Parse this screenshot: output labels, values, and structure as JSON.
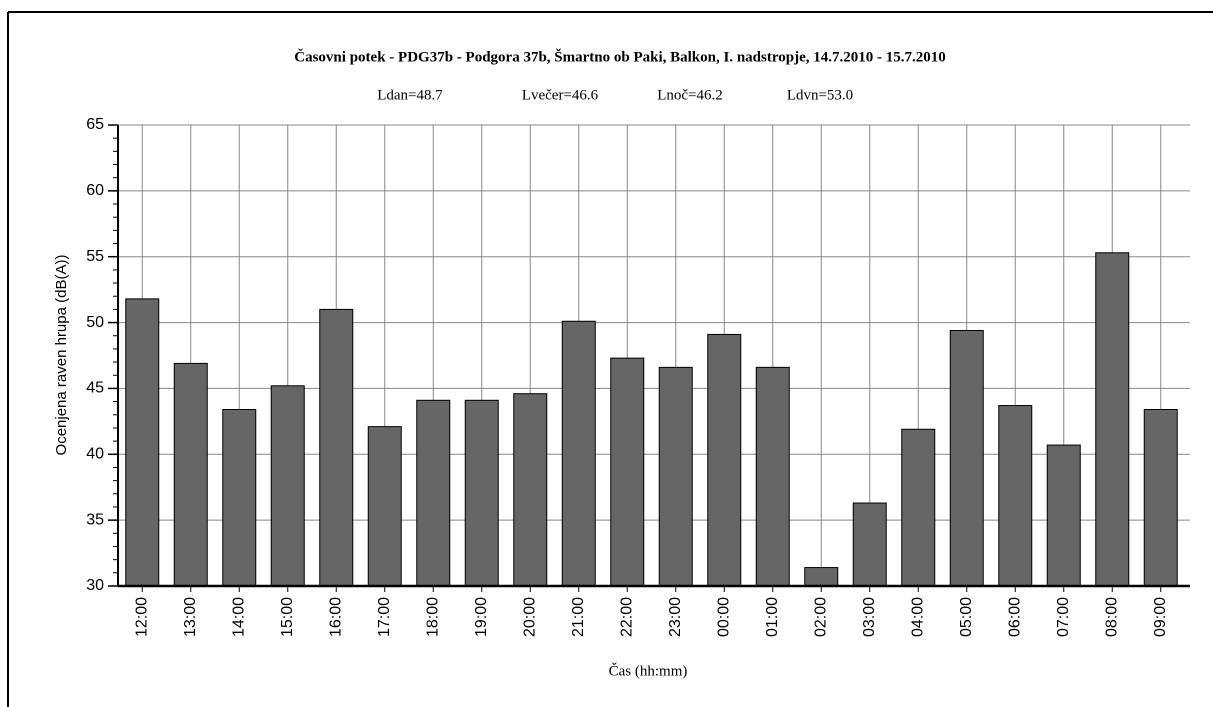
{
  "chart_data": {
    "type": "bar",
    "title": "Časovni potek - PDG37b - Podgora 37b, Šmartno ob Paki, Balkon, I. nadstropje, 14.7.2010 - 15.7.2010",
    "subtitle": [
      "Ldan=48.7",
      "Lvečer=46.6",
      "Lnoč=46.2",
      "Ldvn=53.0"
    ],
    "x_label": "Čas (hh:mm)",
    "y_label": "Ocenjena raven hrupa (dB(A))",
    "categories": [
      "12:00",
      "13:00",
      "14:00",
      "15:00",
      "16:00",
      "17:00",
      "18:00",
      "19:00",
      "20:00",
      "21:00",
      "22:00",
      "23:00",
      "00:00",
      "01:00",
      "02:00",
      "03:00",
      "04:00",
      "05:00",
      "06:00",
      "07:00",
      "08:00",
      "09:00"
    ],
    "values": [
      51.8,
      46.9,
      43.4,
      45.2,
      51.0,
      42.1,
      44.1,
      44.1,
      44.6,
      50.1,
      47.3,
      46.6,
      49.1,
      46.6,
      31.4,
      36.3,
      41.9,
      49.4,
      43.7,
      40.7,
      55.3,
      43.4
    ],
    "color": "#666666",
    "ylim": [
      30,
      65
    ],
    "yticks": [
      30,
      35,
      40,
      45,
      50,
      55,
      60,
      65
    ],
    "grid": true
  }
}
